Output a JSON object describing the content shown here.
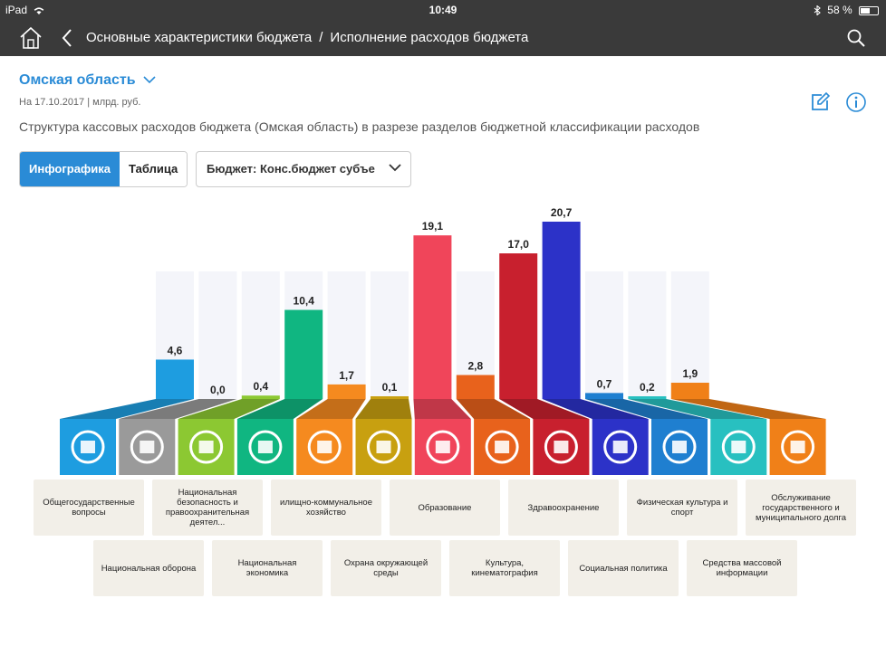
{
  "statusbar": {
    "device": "iPad",
    "time": "10:49",
    "battery": "58 %",
    "battery_level": 0.58
  },
  "nav": {
    "crumb1": "Основные характеристики бюджета",
    "separator": "/",
    "crumb2": "Исполнение расходов бюджета"
  },
  "header": {
    "region": "Омская область",
    "date": "На 17.10.2017 | млрд. руб.",
    "subtitle": "Структура кассовых расходов бюджета (Омская область) в разрезе разделов бюджетной классификации расходов"
  },
  "controls": {
    "tab_infographic": "Инфографика",
    "tab_table": "Таблица",
    "budget_select": "Бюджет: Конс.бюджет субъе"
  },
  "colors": {
    "accent": "#2a8bd6",
    "bars": [
      "#1e9de0",
      "#9a9a9a",
      "#8cc832",
      "#10b681",
      "#f58a1f",
      "#c8a010",
      "#f0455a",
      "#e8621c",
      "#c8202e",
      "#2c32c8",
      "#1f7fd0",
      "#28c0c0",
      "#f08018"
    ]
  },
  "chart_data": {
    "type": "bar",
    "categories": [
      "Общегосударственные вопросы",
      "Национальная оборона",
      "Национальная безопасность и правоохранительная деятел...",
      "Национальная экономика",
      "илищно-коммунальное хозяйство",
      "Охрана окружающей среды",
      "Образование",
      "Культура, кинематография",
      "Здравоохранение",
      "Социальная политика",
      "Физическая культура и спорт",
      "Средства массовой информации",
      "Обслуживание государственного и муниципального долга"
    ],
    "values": [
      4.6,
      0.0,
      0.4,
      10.4,
      1.7,
      0.1,
      19.1,
      2.8,
      17.0,
      20.7,
      0.7,
      0.2,
      1.9
    ],
    "value_labels": [
      "4,6",
      "0,0",
      "0,4",
      "10,4",
      "1,7",
      "0,1",
      "19,1",
      "2,8",
      "17,0",
      "20,7",
      "0,7",
      "0,2",
      "1,9"
    ],
    "icons": [
      "government-building-icon",
      "shield-icon",
      "handcuffs-icon",
      "bank-icon",
      "pipe-valve-icon",
      "trees-icon",
      "graduation-cap-icon",
      "theater-masks-icon",
      "medicine-bowl-icon",
      "people-icon",
      "soccer-ball-icon",
      "newspaper-icon",
      "hand-coins-icon"
    ],
    "ylim": [
      0,
      20.7
    ],
    "title": "",
    "xlabel": "",
    "ylabel": ""
  }
}
